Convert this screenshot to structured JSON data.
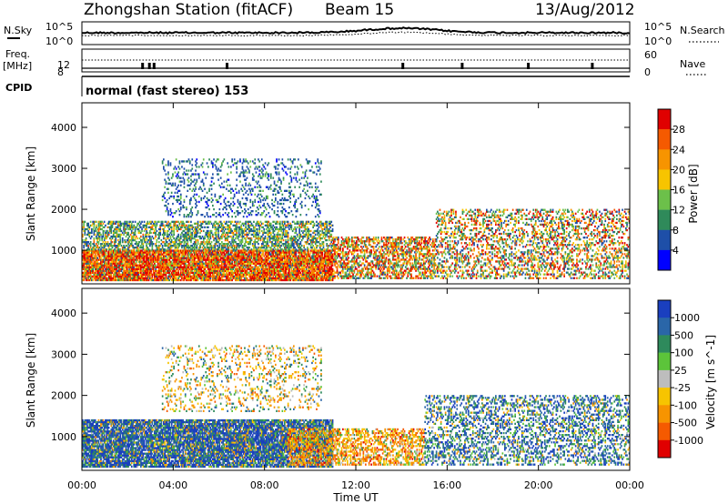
{
  "header": {
    "station": "Zhongshan Station (fitACF)",
    "beam": "Beam 15",
    "date": "13/Aug/2012"
  },
  "strip_panels": {
    "nsky_label": "N.Sky",
    "nsearch_label": "N.Search",
    "nsky_ticks": [
      "10^5",
      "10^0"
    ],
    "nsearch_ticks": [
      "10^5",
      "10^0"
    ],
    "freq_label": "Freq.",
    "freq_unit": "[MHz]",
    "freq_ticks": [
      "12",
      "8"
    ],
    "nave_label": "Nave",
    "nave_ticks": [
      "60",
      "0"
    ],
    "cpid_label": "CPID",
    "cpid_text": "normal (fast stereo) 153"
  },
  "chart_data": [
    {
      "type": "heatmap",
      "panel": "power",
      "title": "",
      "xlabel": "Time UT",
      "ylabel": "Slant Range [km]",
      "x_ticks": [
        "00:00",
        "04:00",
        "08:00",
        "12:00",
        "16:00",
        "20:00",
        "00:00"
      ],
      "x_range_hours": [
        0,
        24
      ],
      "y_ticks": [
        1000,
        2000,
        3000,
        4000
      ],
      "ylim": [
        180,
        4600
      ],
      "colorbar": {
        "label": "Power [dB]",
        "ticks": [
          4,
          8,
          12,
          16,
          20,
          24,
          28
        ],
        "range": [
          0,
          32
        ],
        "colors": [
          "#0000ff",
          "#1e4fa8",
          "#2f8a5a",
          "#6cc04a",
          "#f7c400",
          "#f79400",
          "#f55a00",
          "#e00000"
        ]
      },
      "echo_regions": [
        {
          "t_start": 0.0,
          "t_end": 11.0,
          "r_start": 250,
          "r_end": 1000,
          "level": "strong (24-28 dB)"
        },
        {
          "t_start": 0.0,
          "t_end": 11.0,
          "r_start": 1000,
          "r_end": 1700,
          "level": "moderate (8-16 dB)"
        },
        {
          "t_start": 3.5,
          "t_end": 10.5,
          "r_start": 1800,
          "r_end": 3200,
          "level": "weak (4-12 dB)"
        },
        {
          "t_start": 11.0,
          "t_end": 15.5,
          "r_start": 300,
          "r_end": 1300,
          "level": "moderate-strong (12-28 dB)"
        },
        {
          "t_start": 15.5,
          "t_end": 24.0,
          "r_start": 300,
          "r_end": 2000,
          "level": "patchy (4-28 dB)"
        }
      ]
    },
    {
      "type": "heatmap",
      "panel": "velocity",
      "title": "",
      "xlabel": "Time UT",
      "ylabel": "Slant Range [km]",
      "x_ticks": [
        "00:00",
        "04:00",
        "08:00",
        "12:00",
        "16:00",
        "20:00",
        "00:00"
      ],
      "x_range_hours": [
        0,
        24
      ],
      "y_ticks": [
        1000,
        2000,
        3000,
        4000
      ],
      "ylim": [
        180,
        4600
      ],
      "colorbar": {
        "label": "Velocity [m s^-1]",
        "ticks": [
          "1000",
          "500",
          "100",
          "25",
          "-25",
          "-100",
          "-500",
          "-1000"
        ],
        "colors": [
          "#1a3fbf",
          "#2a66a8",
          "#2e8a5c",
          "#5cc43a",
          "#bdbdbd",
          "#f7c400",
          "#f79400",
          "#f55a00",
          "#e00000"
        ]
      },
      "echo_regions": [
        {
          "t_start": 0.0,
          "t_end": 11.0,
          "r_start": 250,
          "r_end": 1400,
          "level": "positive (100-1000 m/s)"
        },
        {
          "t_start": 3.5,
          "t_end": 10.5,
          "r_start": 1600,
          "r_end": 3200,
          "level": "mixed (-100 to 100 m/s)"
        },
        {
          "t_start": 9.0,
          "t_end": 15.0,
          "r_start": 300,
          "r_end": 1200,
          "level": "negative (-500 to -100 m/s)"
        },
        {
          "t_start": 15.0,
          "t_end": 24.0,
          "r_start": 300,
          "r_end": 2000,
          "level": "positive (100-1000 m/s)"
        }
      ]
    }
  ]
}
